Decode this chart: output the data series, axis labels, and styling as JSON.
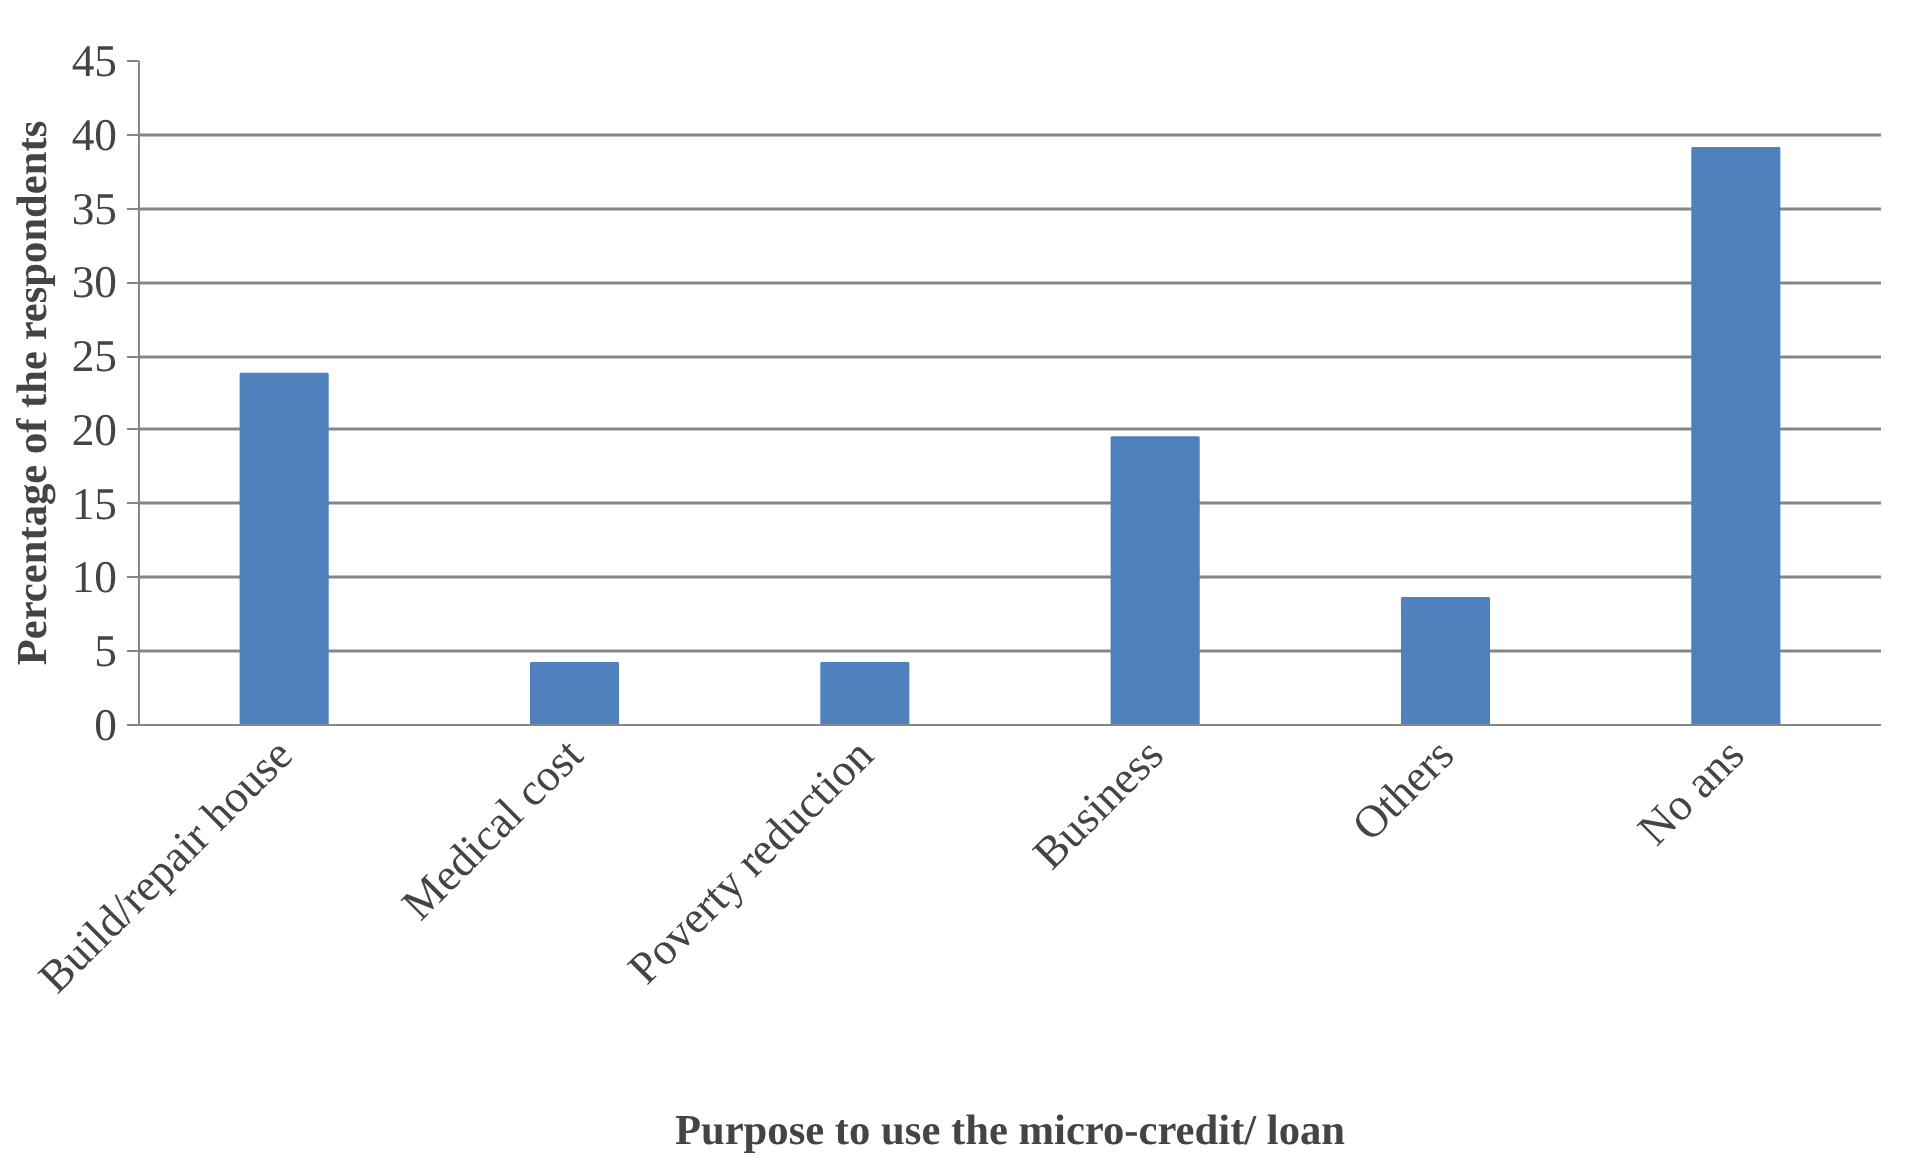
{
  "chart_data": {
    "type": "bar",
    "xlabel": "Purpose to use the micro-credit/ loan",
    "ylabel": "Percentage of the respondents",
    "categories": [
      "Build/repair house",
      "Medical cost",
      "Poverty reduction",
      "Business",
      "Others",
      "No ans"
    ],
    "values": [
      23.8,
      4.2,
      4.2,
      19.5,
      8.6,
      39.1
    ],
    "color": "#4f81bd",
    "ylim": [
      0,
      45
    ],
    "yticks": [
      0,
      5,
      10,
      15,
      20,
      25,
      30,
      35,
      40,
      45
    ],
    "grid": "y"
  }
}
